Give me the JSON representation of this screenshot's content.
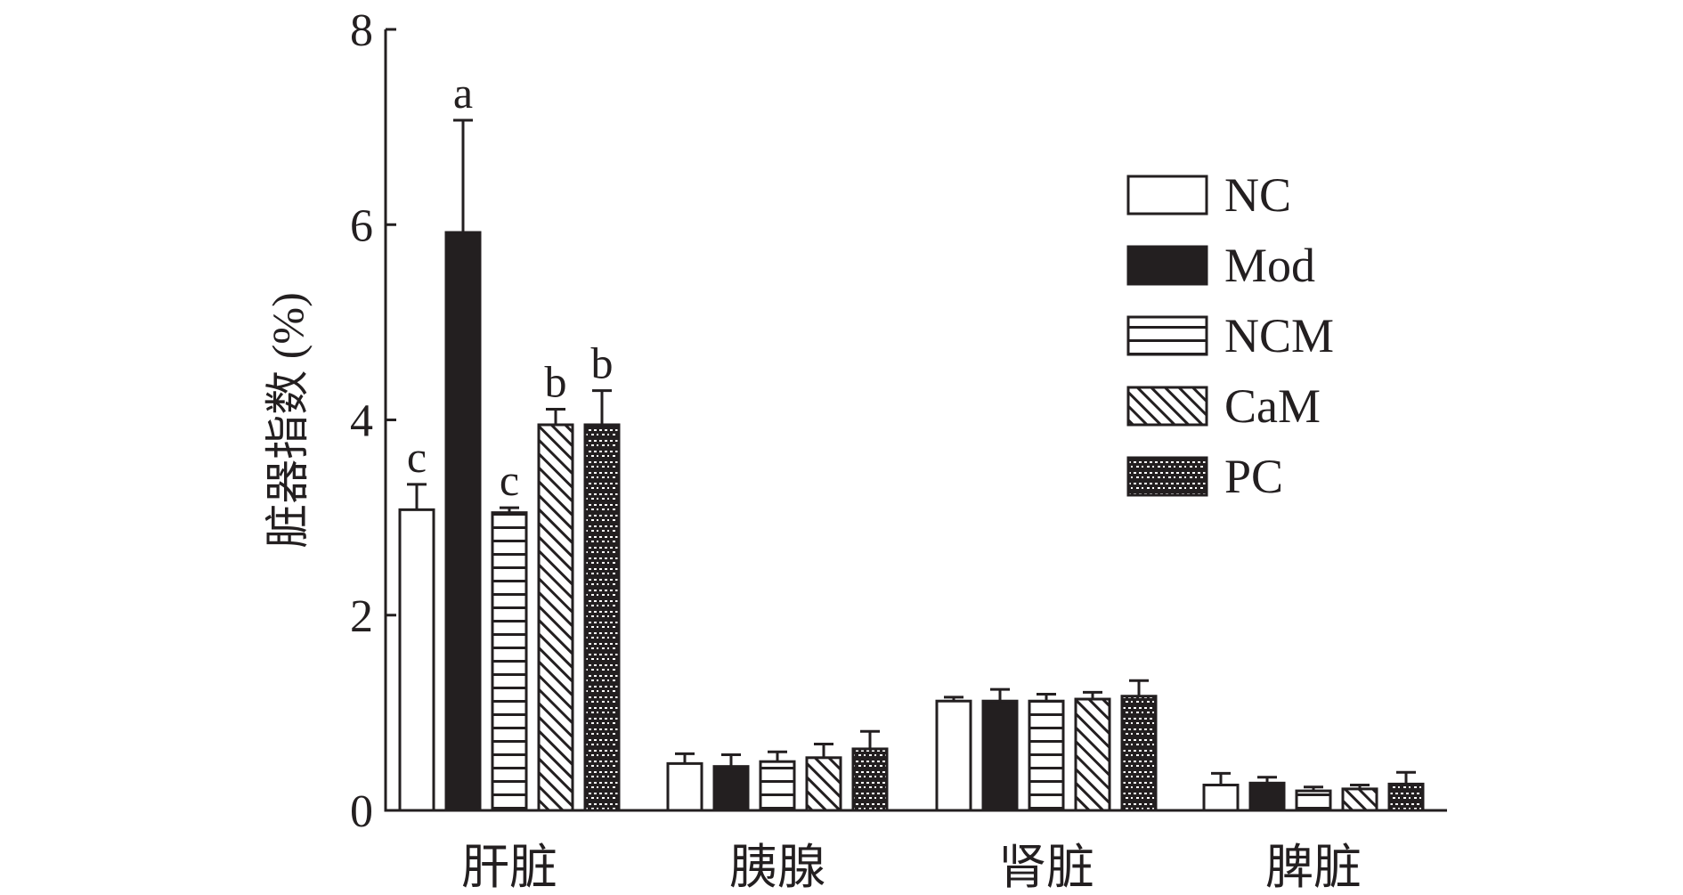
{
  "chart_data": {
    "type": "bar",
    "title": "",
    "xlabel": "",
    "ylabel": "脏器指数 (%)",
    "ylim": [
      0,
      8
    ],
    "yticks": [
      0,
      2,
      4,
      6,
      8
    ],
    "grid": false,
    "legend_position": "top-right",
    "categories": [
      "肝脏",
      "胰腺",
      "肾脏",
      "脾脏"
    ],
    "series": [
      {
        "name": "NC",
        "pattern": "empty",
        "values": [
          3.08,
          0.48,
          1.12,
          0.26
        ],
        "errors": [
          0.26,
          0.1,
          0.04,
          0.12
        ],
        "labels": [
          "c",
          "",
          "",
          ""
        ]
      },
      {
        "name": "Mod",
        "pattern": "solid",
        "values": [
          5.92,
          0.45,
          1.12,
          0.28
        ],
        "errors": [
          1.15,
          0.12,
          0.12,
          0.06
        ],
        "labels": [
          "a",
          "",
          "",
          ""
        ]
      },
      {
        "name": "NCM",
        "pattern": "horizontal-lines",
        "values": [
          3.05,
          0.5,
          1.12,
          0.2
        ],
        "errors": [
          0.05,
          0.1,
          0.07,
          0.04
        ],
        "labels": [
          "c",
          "",
          "",
          ""
        ]
      },
      {
        "name": "CaM",
        "pattern": "diagonal-lines",
        "values": [
          3.95,
          0.54,
          1.14,
          0.22
        ],
        "errors": [
          0.16,
          0.14,
          0.07,
          0.04
        ],
        "labels": [
          "b",
          "",
          "",
          ""
        ]
      },
      {
        "name": "PC",
        "pattern": "dark-dotted",
        "values": [
          3.95,
          0.63,
          1.17,
          0.27
        ],
        "errors": [
          0.35,
          0.18,
          0.16,
          0.12
        ],
        "labels": [
          "b",
          "",
          "",
          ""
        ]
      }
    ],
    "colors": {
      "ink": "#231f20",
      "fill_light": "#ffffff",
      "fill_dark": "#231f20"
    }
  }
}
